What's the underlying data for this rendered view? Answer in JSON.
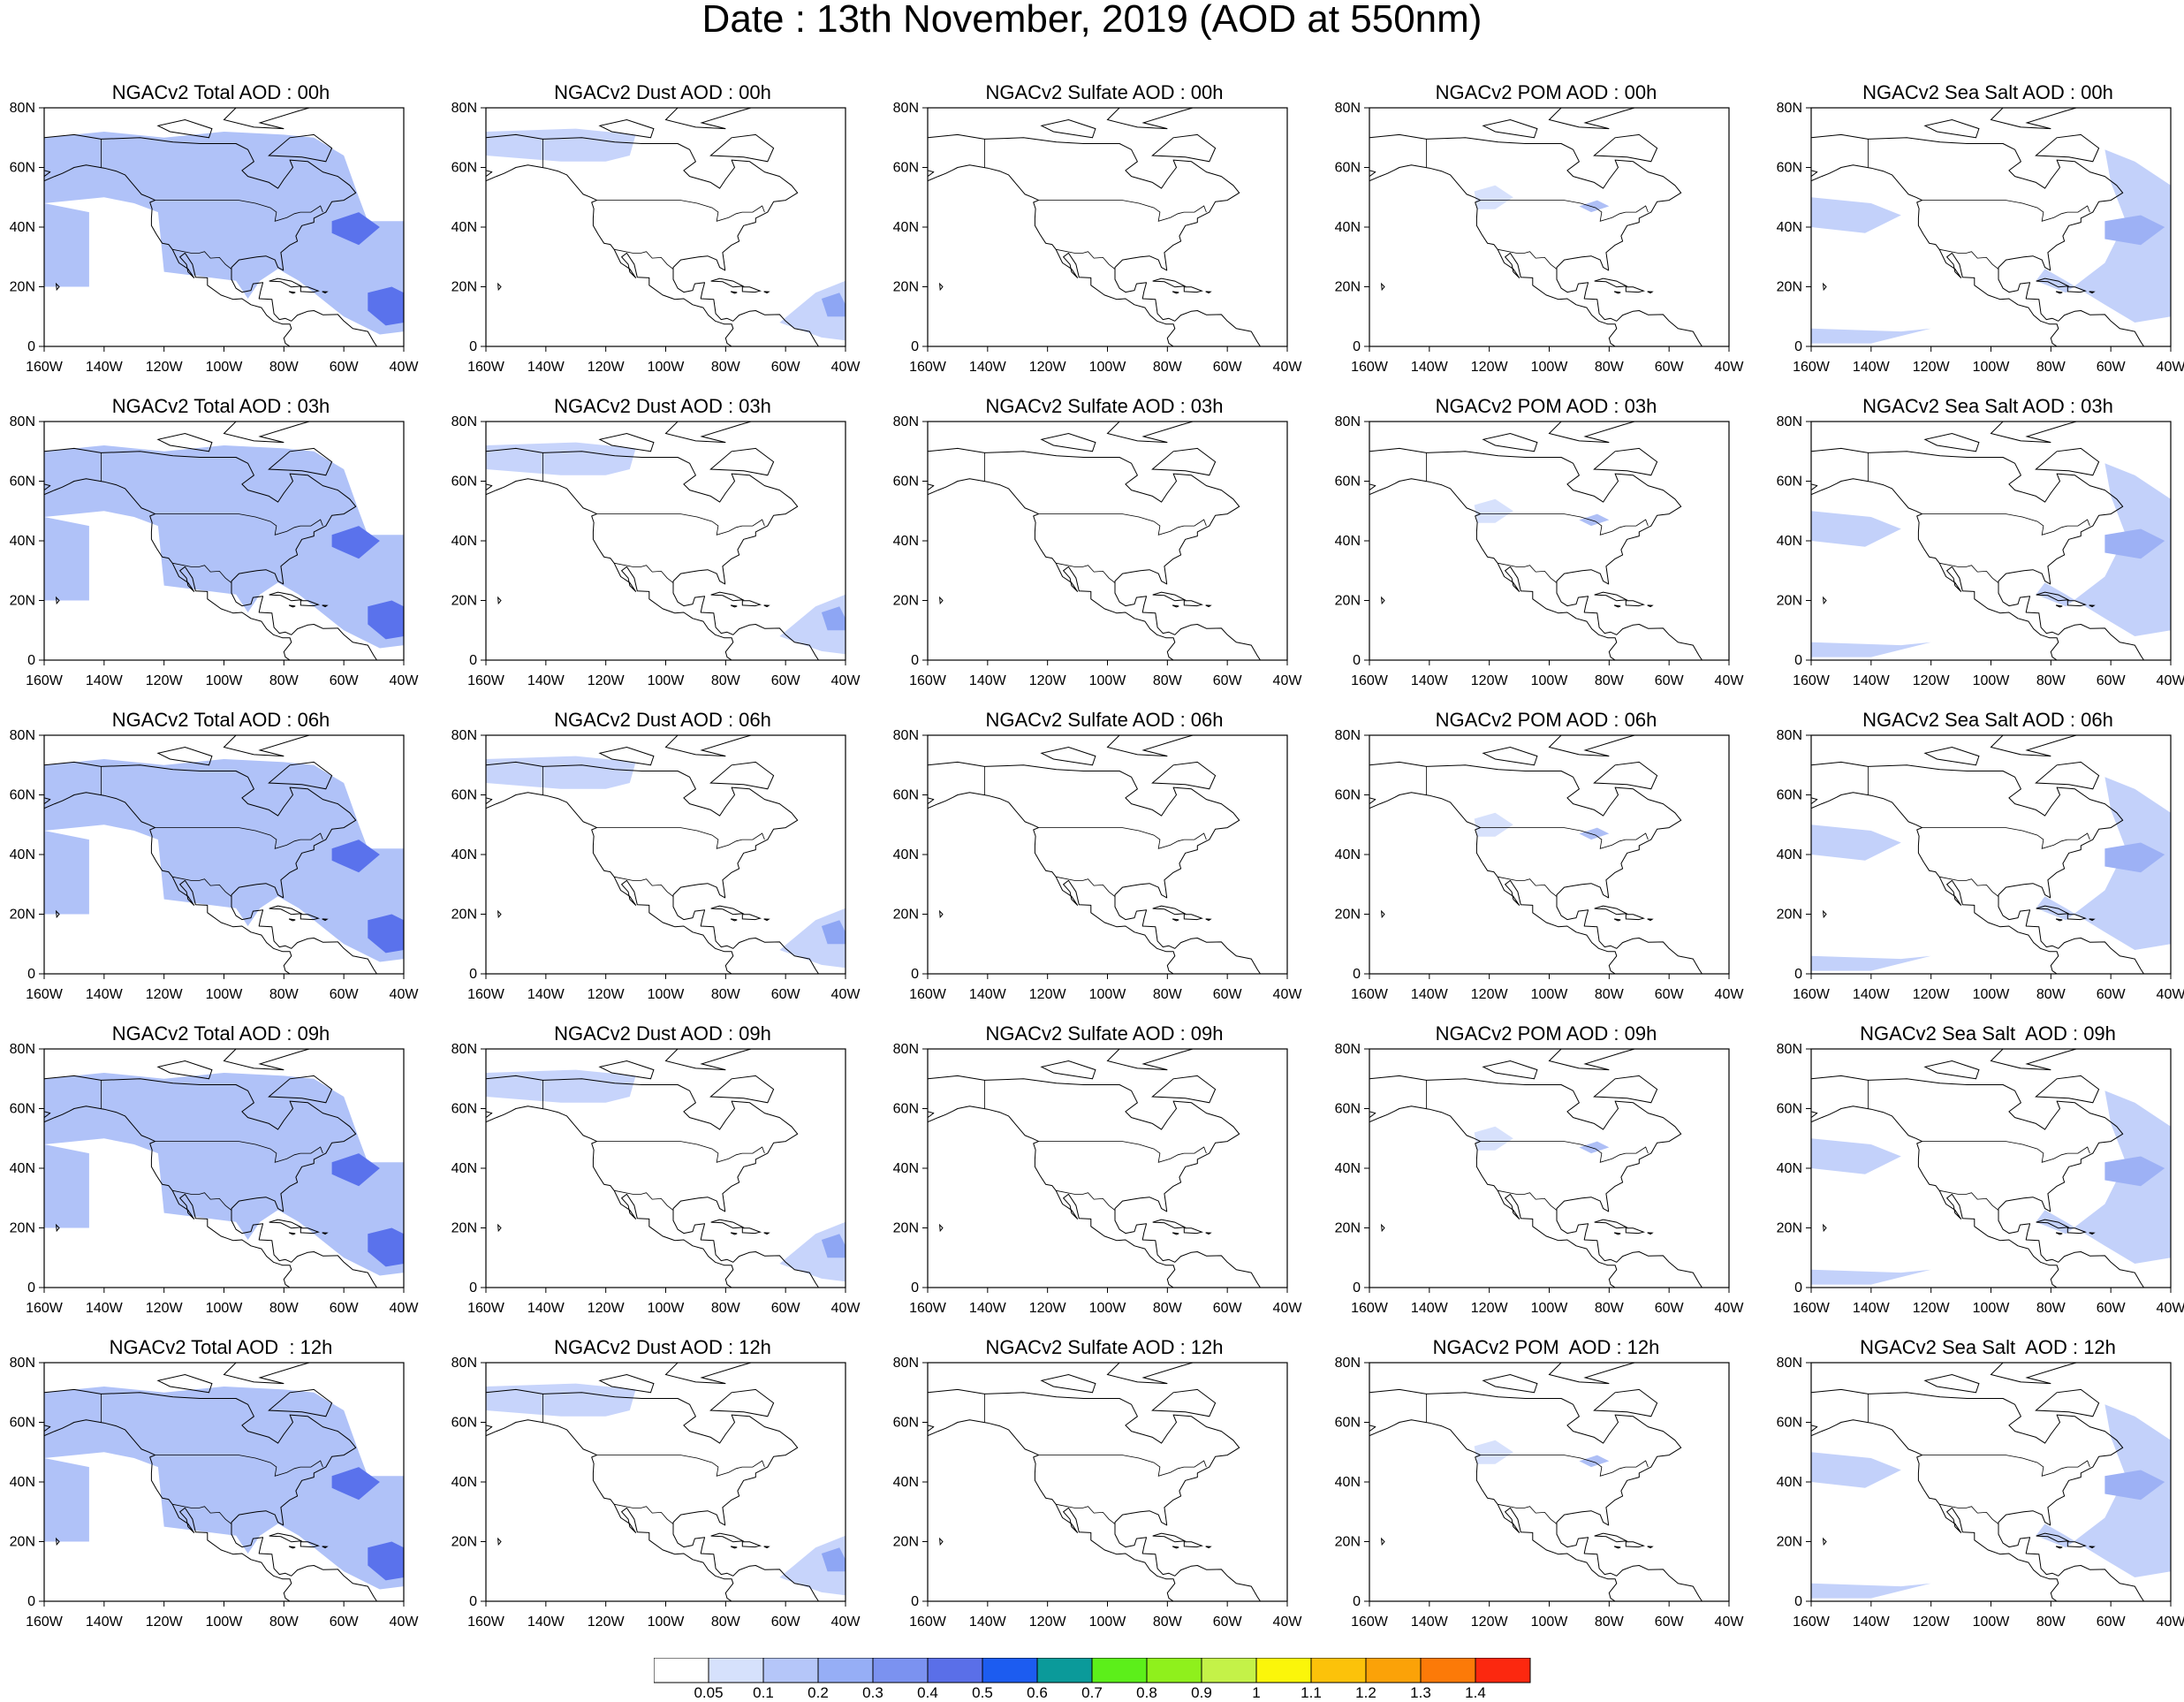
{
  "title": "Date : 13th November, 2019 (AOD at 550nm)",
  "x_ticks": [
    "160W",
    "140W",
    "120W",
    "100W",
    "80W",
    "60W",
    "40W"
  ],
  "y_ticks": [
    "0",
    "20N",
    "40N",
    "60N",
    "80N"
  ],
  "columns": [
    {
      "key": "total",
      "blob": "#b0c2f8",
      "hot": "#5a72ec"
    },
    {
      "key": "dust",
      "blob": "#c7d4fb",
      "hot": "#8ea6f4"
    },
    {
      "key": "sulfate",
      "blob": "#e6ecfd",
      "hot": "#e6ecfd"
    },
    {
      "key": "pom",
      "blob": "#d7e1fc",
      "hot": "#aebff6"
    },
    {
      "key": "seasalt",
      "blob": "#c3d1fa",
      "hot": "#9db1f5"
    }
  ],
  "panels": [
    [
      "NGACv2 Total AOD : 00h",
      "NGACv2 Dust AOD : 00h",
      "NGACv2 Sulfate AOD : 00h",
      "NGACv2 POM AOD : 00h",
      "NGACv2 Sea Salt AOD : 00h"
    ],
    [
      "NGACv2 Total AOD : 03h",
      "NGACv2 Dust AOD : 03h",
      "NGACv2 Sulfate AOD : 03h",
      "NGACv2 POM AOD : 03h",
      "NGACv2 Sea Salt AOD : 03h"
    ],
    [
      "NGACv2 Total AOD : 06h",
      "NGACv2 Dust AOD : 06h",
      "NGACv2 Sulfate AOD : 06h",
      "NGACv2 POM AOD : 06h",
      "NGACv2 Sea Salt AOD : 06h"
    ],
    [
      "NGACv2 Total AOD : 09h",
      "NGACv2 Dust AOD : 09h",
      "NGACv2 Sulfate AOD : 09h",
      "NGACv2 POM AOD : 09h",
      "NGACv2 Sea Salt  AOD : 09h"
    ],
    [
      "NGACv2 Total AOD  : 12h",
      "NGACv2 Dust AOD : 12h",
      "NGACv2 Sulfate AOD : 12h",
      "NGACv2 POM  AOD : 12h",
      "NGACv2 Sea Salt  AOD : 12h"
    ]
  ],
  "colorbar": {
    "colors": [
      "#ffffff",
      "#d6e1fc",
      "#b5c6f9",
      "#96aef6",
      "#7b92f0",
      "#5a6fe8",
      "#1c5cf0",
      "#0b9a9a",
      "#5cef1a",
      "#8ff01c",
      "#c4f248",
      "#fbf60a",
      "#fcc20a",
      "#fba208",
      "#fc7a08",
      "#fc280f"
    ],
    "labels": [
      "0.05",
      "0.1",
      "0.2",
      "0.3",
      "0.4",
      "0.5",
      "0.6",
      "0.7",
      "0.8",
      "0.9",
      "1",
      "1.1",
      "1.2",
      "1.3",
      "1.4"
    ]
  }
}
